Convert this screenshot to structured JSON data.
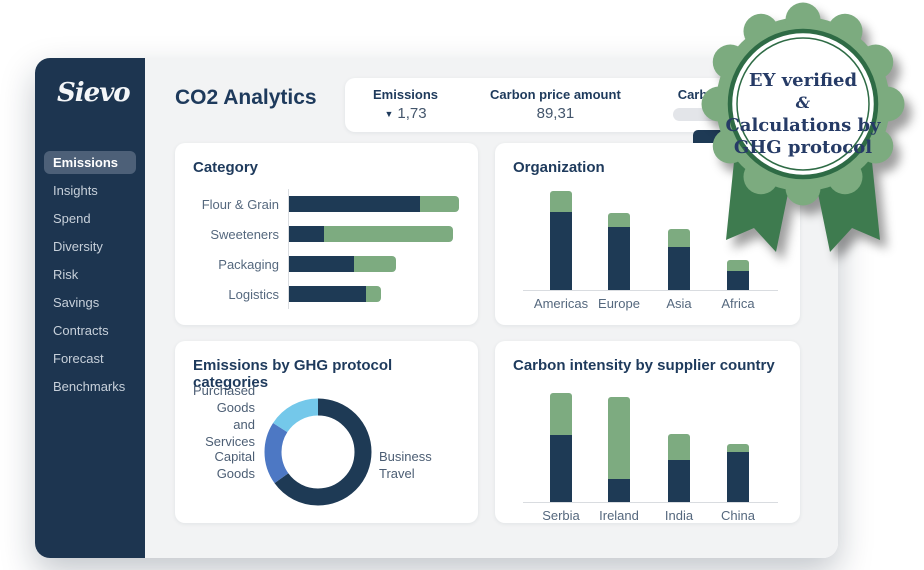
{
  "header": {
    "title": "CO2 Analytics"
  },
  "sidebar": {
    "logo": "Sievo",
    "items": [
      {
        "label": "Emissions",
        "active": true
      },
      {
        "label": "Insights",
        "active": false
      },
      {
        "label": "Spend",
        "active": false
      },
      {
        "label": "Diversity",
        "active": false
      },
      {
        "label": "Risk",
        "active": false
      },
      {
        "label": "Savings",
        "active": false
      },
      {
        "label": "Contracts",
        "active": false
      },
      {
        "label": "Forecast",
        "active": false
      },
      {
        "label": "Benchmarks",
        "active": false
      }
    ]
  },
  "kpis": {
    "emissions": {
      "label": "Emissions",
      "value": "1,73",
      "dropdown_icon": "▼"
    },
    "carbon_price_amount": {
      "label": "Carbon price amount",
      "value": "89,31"
    },
    "carbon_price": {
      "label": "Carbon price",
      "control": "slider"
    }
  },
  "badge": {
    "lines": [
      "EY verified",
      "&",
      "Calculations by",
      "GHG protocol"
    ]
  },
  "colors": {
    "navy": "#1e3a55",
    "green": "#7dab80",
    "sidebar": "#1d3550",
    "active_pill": "#4d6078",
    "capital_blue": "#4d78c4",
    "business_blue": "#74c8ea",
    "badge_green": "#7cab7f",
    "badge_dark_green": "#2e6b45",
    "ribbon_green": "#3e7b4f",
    "axis_gray": "#d9dce0"
  },
  "chart_data": [
    {
      "type": "bar",
      "orientation": "horizontal",
      "title": "Category",
      "categories": [
        "Flour & Grain",
        "Sweeteners",
        "Packaging",
        "Logistics"
      ],
      "series": [
        {
          "name": "segment-navy",
          "values": [
            131,
            35,
            65,
            77
          ]
        },
        {
          "name": "segment-green",
          "values": [
            39,
            129,
            42,
            15
          ]
        }
      ],
      "xlabel": "",
      "ylabel": "",
      "value_scale": "relative (axis unlabeled)"
    },
    {
      "type": "bar",
      "orientation": "vertical",
      "title": "Organization",
      "categories": [
        "Americas",
        "Europe",
        "Asia",
        "Africa"
      ],
      "series": [
        {
          "name": "segment-navy",
          "values": [
            78,
            63,
            43,
            19
          ]
        },
        {
          "name": "segment-green",
          "values": [
            21,
            14,
            18,
            11
          ]
        }
      ],
      "xlabel": "",
      "ylabel": "",
      "value_scale": "relative (axis unlabeled)"
    },
    {
      "type": "pie",
      "title": "Emissions by GHG protocol categories",
      "labels": [
        "Purchased Goods and Services",
        "Capital Goods",
        "Business Travel"
      ],
      "values": [
        65,
        19,
        16
      ],
      "labels_display": [
        "Business\nTravel",
        "Capital\nGoods",
        "Purchased\nGoods and\nServices"
      ],
      "slice_colors": [
        "#1e3a55",
        "#4d78c4",
        "#74c8ea"
      ]
    },
    {
      "type": "bar",
      "orientation": "vertical",
      "title": "Carbon intensity by supplier country",
      "categories": [
        "Serbia",
        "Ireland",
        "India",
        "China"
      ],
      "series": [
        {
          "name": "segment-navy",
          "values": [
            67,
            23,
            42,
            50
          ]
        },
        {
          "name": "segment-green",
          "values": [
            42,
            82,
            26,
            8
          ]
        }
      ],
      "xlabel": "",
      "ylabel": "",
      "value_scale": "relative (axis unlabeled)"
    }
  ]
}
